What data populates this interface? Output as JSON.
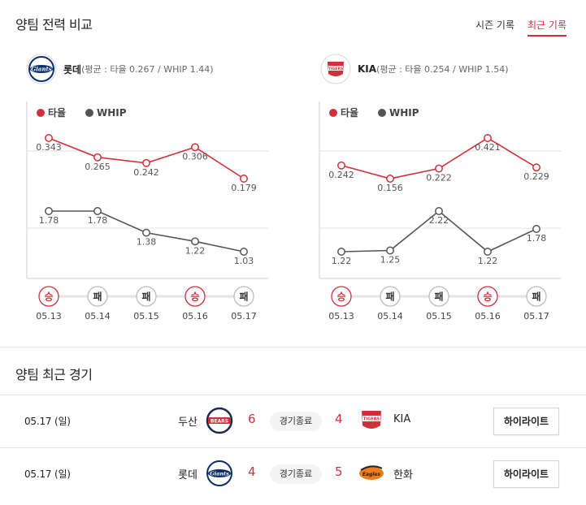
{
  "compare": {
    "title": "양팀 전력 비교",
    "tabs": [
      {
        "label": "시즌 기록",
        "active": false
      },
      {
        "label": "최근 기록",
        "active": true
      }
    ]
  },
  "teams": [
    {
      "name": "롯데",
      "stats_text": "(평균 : 타율 0.267 / WHIP 1.44)",
      "logo_text": "Giants"
    },
    {
      "name": "KIA",
      "stats_text": "(평균 : 타율 0.254 / WHIP 1.54)",
      "logo_text": "TIGERS"
    }
  ],
  "chart_data": [
    {
      "type": "line",
      "categories": [
        "05.13",
        "05.14",
        "05.15",
        "05.16",
        "05.17"
      ],
      "results": [
        "승",
        "패",
        "패",
        "승",
        "패"
      ],
      "series": [
        {
          "name": "타율",
          "color": "#d32f3b",
          "values": [
            0.343,
            0.265,
            0.242,
            0.306,
            0.179
          ],
          "labels": [
            "0.343",
            "0.265",
            "0.242",
            "0.306",
            "0.179"
          ]
        },
        {
          "name": "WHIP",
          "color": "#555555",
          "values": [
            1.78,
            1.78,
            1.38,
            1.22,
            1.03
          ],
          "labels": [
            "1.78",
            "1.78",
            "1.38",
            "1.22",
            "1.03"
          ]
        }
      ],
      "legend": "top-left",
      "grid": true
    },
    {
      "type": "line",
      "categories": [
        "05.13",
        "05.14",
        "05.15",
        "05.16",
        "05.17"
      ],
      "results": [
        "승",
        "패",
        "패",
        "승",
        "패"
      ],
      "series": [
        {
          "name": "타율",
          "color": "#d32f3b",
          "values": [
            0.242,
            0.156,
            0.222,
            0.421,
            0.229
          ],
          "labels": [
            "0.242",
            "0.156",
            "0.222",
            "0.421",
            "0.229"
          ]
        },
        {
          "name": "WHIP",
          "color": "#555555",
          "values": [
            1.22,
            1.25,
            2.22,
            1.22,
            1.78
          ],
          "labels": [
            "1.22",
            "1.25",
            "2.22",
            "1.22",
            "1.78"
          ]
        }
      ],
      "legend": "top-left",
      "grid": true
    }
  ],
  "recent": {
    "title": "양팀 최근 경기",
    "games": [
      {
        "date": "05.17 (일)",
        "home": "두산",
        "home_logo": "BEARS",
        "home_score": "6",
        "status": "경기종료",
        "away_score": "4",
        "away": "KIA",
        "away_logo": "TIGERS",
        "button": "하이라이트"
      },
      {
        "date": "05.17 (일)",
        "home": "롯데",
        "home_logo": "Giants",
        "home_score": "4",
        "status": "경기종료",
        "away_score": "5",
        "away": "한화",
        "away_logo": "Eagles",
        "button": "하이라이트"
      }
    ]
  },
  "colors": {
    "accent": "#d32f3b",
    "whip": "#555555",
    "win": "#d32f3b",
    "loss": "#333333"
  }
}
